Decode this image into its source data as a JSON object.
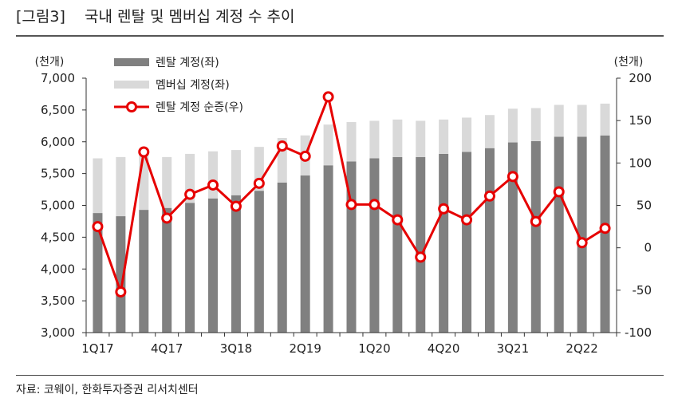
{
  "title": "[그림3]    국내 렌탈 및 멤버십 계정 수 추이",
  "source": "자료: 코웨이, 한화투자증권 리서치센터",
  "colors": {
    "rental": "#808080",
    "membership": "#d9d9d9",
    "net_adds": "#e60000",
    "marker_fill": "#ffffff"
  },
  "chart_data": {
    "type": "bar+line",
    "categories": [
      "1Q17",
      "2Q17",
      "3Q17",
      "4Q17",
      "1Q18",
      "2Q18",
      "3Q18",
      "4Q18",
      "1Q19",
      "2Q19",
      "3Q19",
      "4Q19",
      "1Q20",
      "2Q20",
      "3Q20",
      "4Q20",
      "1Q21",
      "2Q21",
      "3Q21",
      "4Q21",
      "1Q22",
      "2Q22",
      "3Q22"
    ],
    "x_tick_labels": [
      "1Q17",
      "4Q17",
      "3Q18",
      "2Q19",
      "1Q20",
      "4Q20",
      "3Q21",
      "2Q22"
    ],
    "x_tick_indices": [
      0,
      3,
      6,
      9,
      12,
      15,
      18,
      21
    ],
    "series": [
      {
        "name": "렌탈 계정(좌)",
        "type": "bar",
        "axis": "left",
        "values": [
          4880,
          4830,
          4930,
          4960,
          5040,
          5110,
          5160,
          5230,
          5360,
          5470,
          5630,
          5690,
          5740,
          5760,
          5760,
          5810,
          5840,
          5900,
          5990,
          6010,
          6080,
          6080,
          6100
        ]
      },
      {
        "name": "멤버십 계정(좌)",
        "type": "bar",
        "axis": "left",
        "stacked": true,
        "values": [
          860,
          930,
          850,
          800,
          770,
          740,
          710,
          690,
          700,
          630,
          640,
          620,
          590,
          590,
          570,
          540,
          540,
          520,
          530,
          520,
          500,
          500,
          500
        ]
      },
      {
        "name": "렌탈 계정 순증(우)",
        "type": "line",
        "axis": "right",
        "values": [
          25,
          -52,
          113,
          35,
          63,
          74,
          49,
          76,
          120,
          108,
          178,
          51,
          51,
          33,
          -11,
          46,
          33,
          61,
          84,
          31,
          66,
          6,
          23
        ]
      }
    ],
    "left_axis": {
      "label": "(천개)",
      "min": 3000,
      "max": 7000,
      "ticks": [
        3000,
        3500,
        4000,
        4500,
        5000,
        5500,
        6000,
        6500,
        7000
      ],
      "tick_labels": [
        "3,000",
        "3,500",
        "4,000",
        "4,500",
        "5,000",
        "5,500",
        "6,000",
        "6,500",
        "7,000"
      ]
    },
    "right_axis": {
      "label": "(천개)",
      "min": -100,
      "max": 200,
      "ticks": [
        -100,
        -50,
        0,
        50,
        100,
        150,
        200
      ],
      "tick_labels": [
        "-100",
        "-50",
        "0",
        "50",
        "100",
        "150",
        "200"
      ]
    },
    "legend": {
      "position": "top-left",
      "entries": [
        "렌탈 계정(좌)",
        "멤버십 계정(좌)",
        "렌탈 계정 순증(우)"
      ]
    }
  }
}
